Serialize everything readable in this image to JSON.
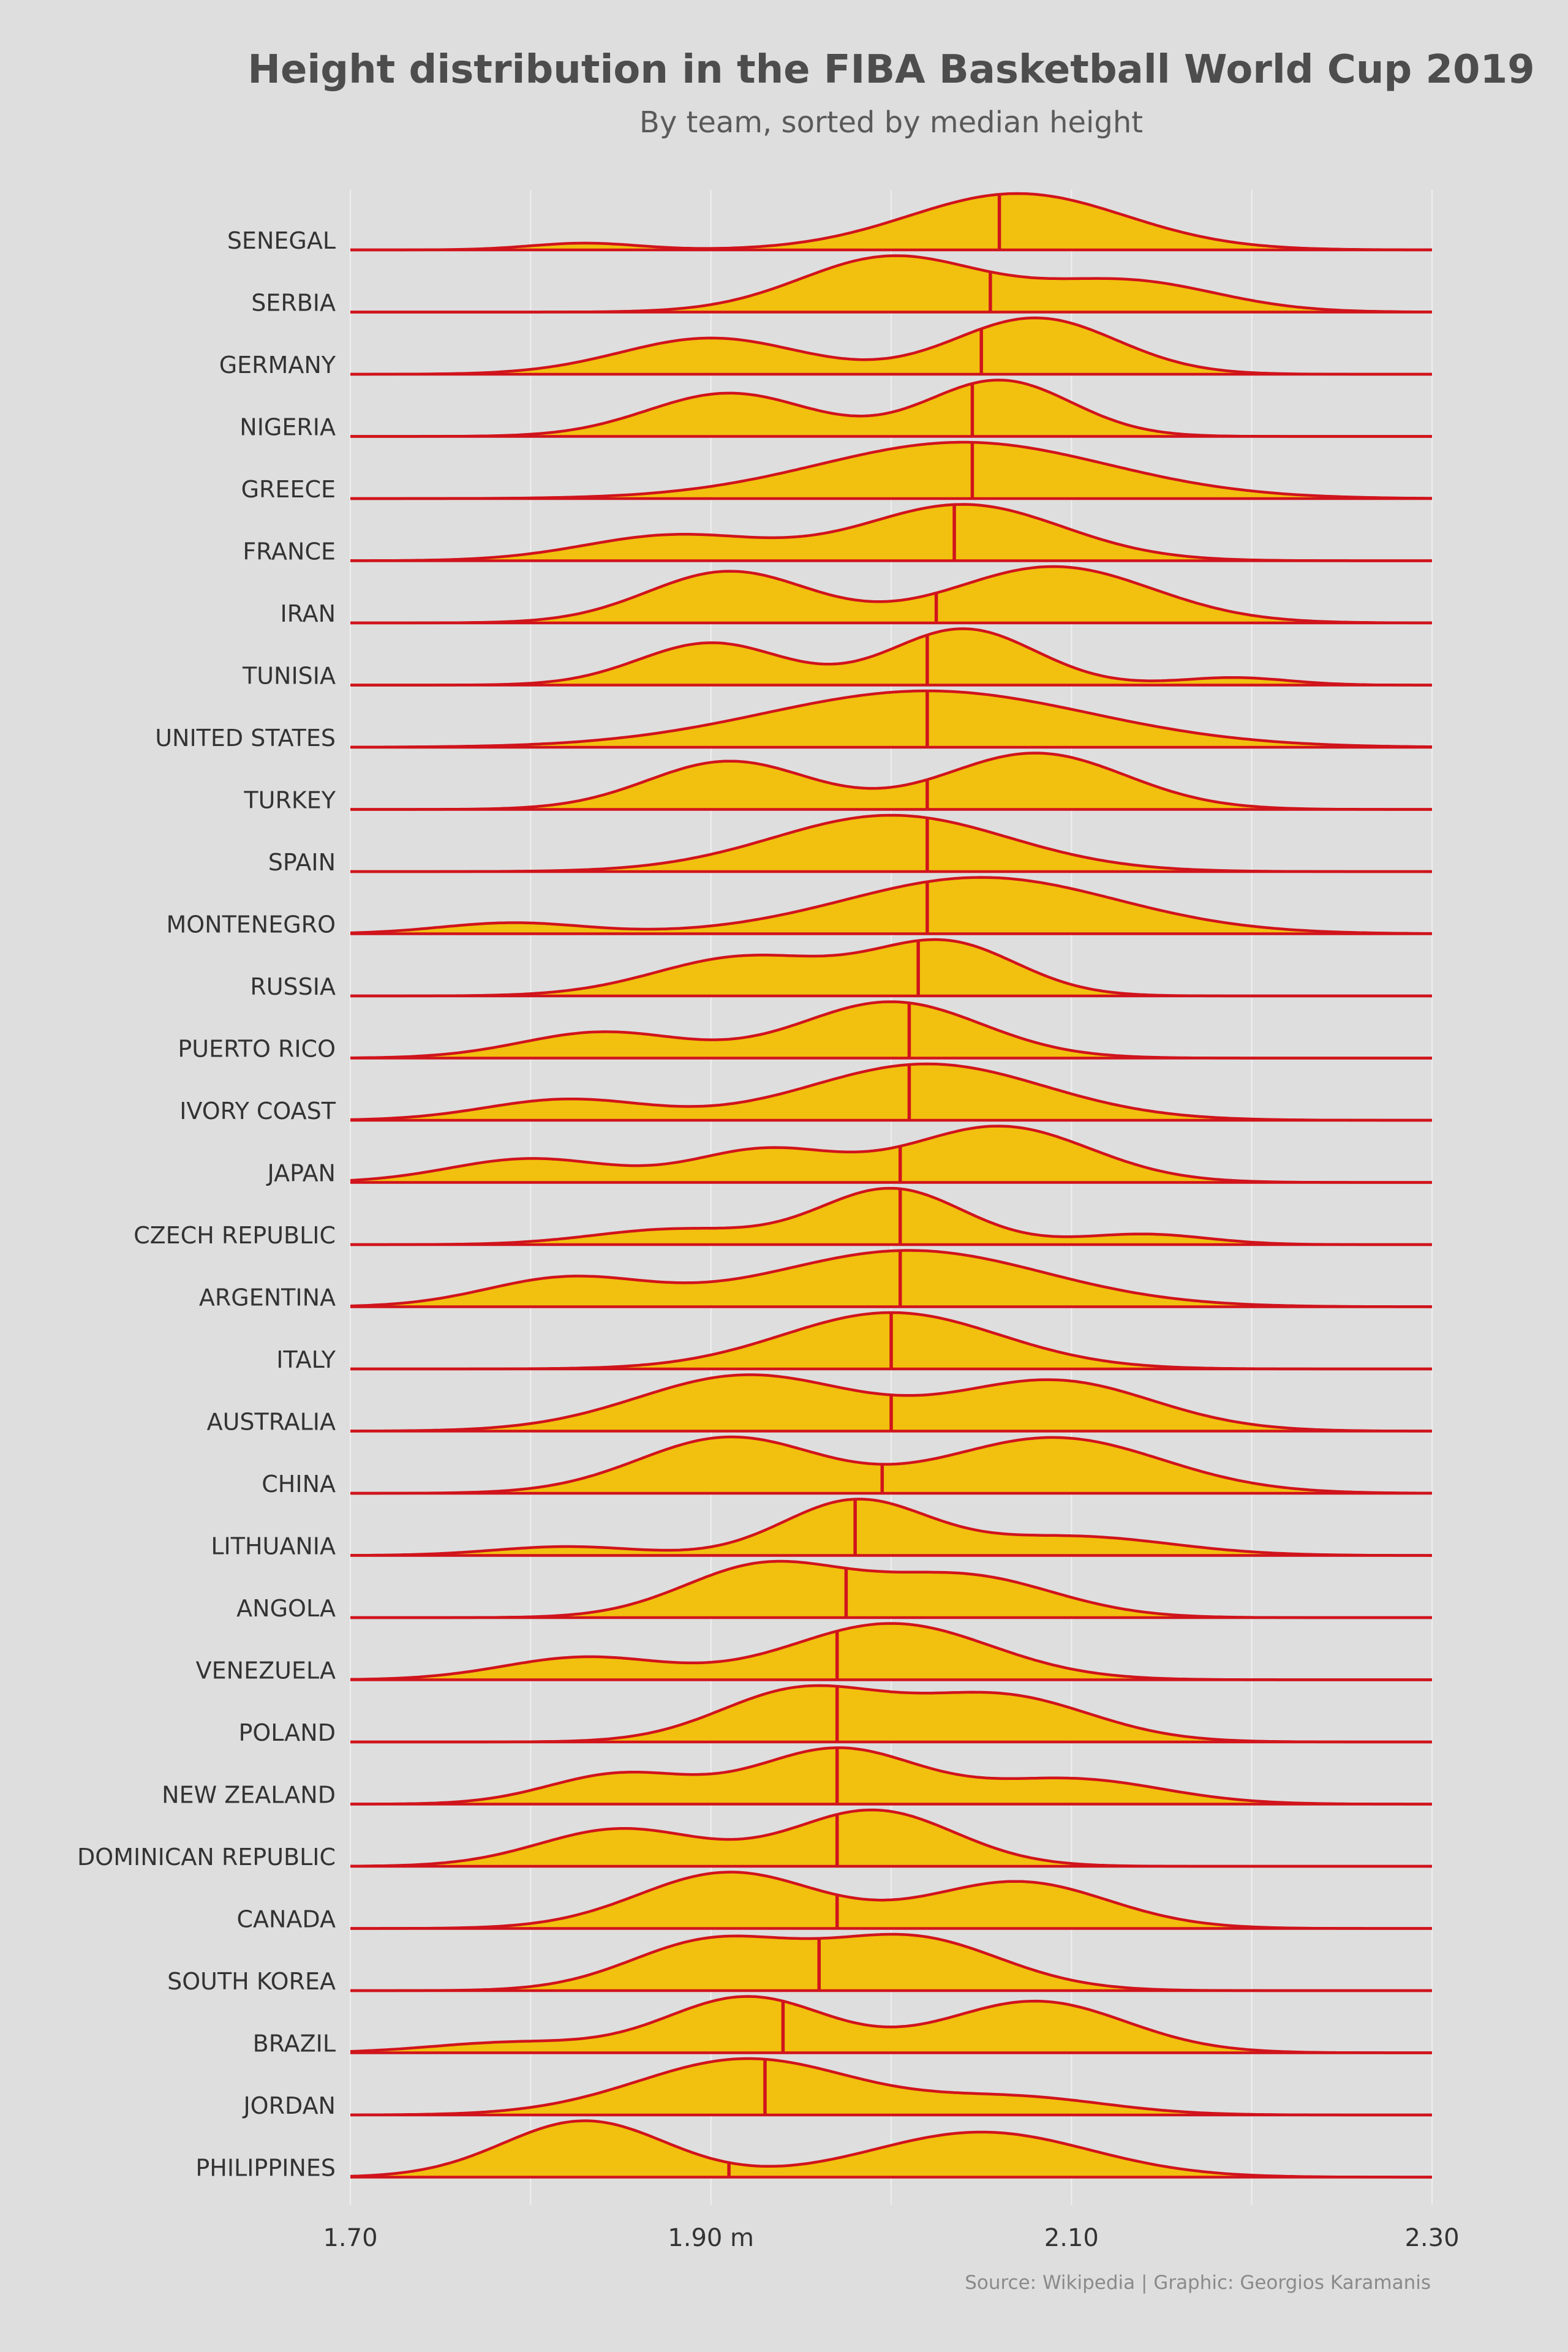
{
  "chart_data": {
    "type": "ridgeline",
    "title": "Height distribution in the FIBA Basketball World Cup 2019",
    "subtitle": "By team, sorted by median height",
    "caption": "Source: Wikipedia | Graphic: Georgios Karamanis",
    "xlim": [
      1.7,
      2.3
    ],
    "x_ticks": [
      {
        "value": 1.7,
        "label": "1.70"
      },
      {
        "value": 1.9,
        "label": "1.90 m"
      },
      {
        "value": 2.1,
        "label": "2.10"
      },
      {
        "value": 2.3,
        "label": "2.30"
      }
    ],
    "grid_minor_values": [
      1.8,
      2.0,
      2.2
    ],
    "fill_color": "#f2c00e",
    "line_color": "#d0141c",
    "teams": [
      {
        "name": "SENEGAL",
        "median": 2.06,
        "modes": [
          [
            1.83,
            0.03,
            0.12
          ],
          [
            2.07,
            0.06,
            1.0
          ]
        ]
      },
      {
        "name": "SERBIA",
        "median": 2.055,
        "modes": [
          [
            2.0,
            0.05,
            0.8
          ],
          [
            2.13,
            0.05,
            0.45
          ]
        ]
      },
      {
        "name": "GERMANY",
        "median": 2.05,
        "modes": [
          [
            1.9,
            0.05,
            0.45
          ],
          [
            2.08,
            0.045,
            0.7
          ]
        ]
      },
      {
        "name": "NIGERIA",
        "median": 2.045,
        "modes": [
          [
            1.91,
            0.045,
            0.5
          ],
          [
            2.06,
            0.04,
            0.65
          ]
        ]
      },
      {
        "name": "GREECE",
        "median": 2.045,
        "modes": [
          [
            2.04,
            0.08,
            0.7
          ]
        ]
      },
      {
        "name": "FRANCE",
        "median": 2.035,
        "modes": [
          [
            1.88,
            0.05,
            0.25
          ],
          [
            2.04,
            0.055,
            0.55
          ]
        ]
      },
      {
        "name": "IRAN",
        "median": 2.025,
        "modes": [
          [
            1.91,
            0.045,
            0.42
          ],
          [
            2.09,
            0.055,
            0.46
          ]
        ]
      },
      {
        "name": "TUNISIA",
        "median": 2.02,
        "modes": [
          [
            1.9,
            0.04,
            0.45
          ],
          [
            2.04,
            0.04,
            0.6
          ],
          [
            2.19,
            0.03,
            0.08
          ]
        ]
      },
      {
        "name": "UNITED STATES",
        "median": 2.02,
        "modes": [
          [
            2.02,
            0.09,
            0.6
          ]
        ]
      },
      {
        "name": "TURKEY",
        "median": 2.02,
        "modes": [
          [
            1.91,
            0.045,
            0.47
          ],
          [
            2.08,
            0.05,
            0.55
          ]
        ]
      },
      {
        "name": "SPAIN",
        "median": 2.02,
        "modes": [
          [
            2.0,
            0.065,
            0.7
          ]
        ]
      },
      {
        "name": "MONTENEGRO",
        "median": 2.02,
        "modes": [
          [
            1.79,
            0.04,
            0.12
          ],
          [
            2.05,
            0.075,
            0.62
          ]
        ]
      },
      {
        "name": "RUSSIA",
        "median": 2.015,
        "modes": [
          [
            1.92,
            0.05,
            0.45
          ],
          [
            2.03,
            0.04,
            0.6
          ]
        ]
      },
      {
        "name": "PUERTO RICO",
        "median": 2.01,
        "modes": [
          [
            1.84,
            0.045,
            0.3
          ],
          [
            2.0,
            0.05,
            0.65
          ]
        ]
      },
      {
        "name": "IVORY COAST",
        "median": 2.01,
        "modes": [
          [
            1.82,
            0.045,
            0.24
          ],
          [
            2.02,
            0.065,
            0.65
          ]
        ]
      },
      {
        "name": "JAPAN",
        "median": 2.005,
        "modes": [
          [
            1.8,
            0.045,
            0.22
          ],
          [
            1.93,
            0.04,
            0.3
          ],
          [
            2.06,
            0.05,
            0.52
          ]
        ]
      },
      {
        "name": "CZECH REPUBLIC",
        "median": 2.005,
        "modes": [
          [
            1.88,
            0.045,
            0.22
          ],
          [
            2.0,
            0.04,
            0.8
          ],
          [
            2.14,
            0.035,
            0.15
          ]
        ]
      },
      {
        "name": "ARGENTINA",
        "median": 2.005,
        "modes": [
          [
            1.82,
            0.045,
            0.25
          ],
          [
            2.01,
            0.075,
            0.5
          ]
        ]
      },
      {
        "name": "ITALY",
        "median": 2.0,
        "modes": [
          [
            2.0,
            0.06,
            0.9
          ]
        ]
      },
      {
        "name": "AUSTRALIA",
        "median": 2.0,
        "modes": [
          [
            1.92,
            0.06,
            0.5
          ],
          [
            2.09,
            0.055,
            0.45
          ]
        ]
      },
      {
        "name": "CHINA",
        "median": 1.995,
        "modes": [
          [
            1.91,
            0.05,
            0.55
          ],
          [
            2.09,
            0.06,
            0.55
          ]
        ]
      },
      {
        "name": "LITHUANIA",
        "median": 1.98,
        "modes": [
          [
            1.82,
            0.04,
            0.13
          ],
          [
            1.98,
            0.04,
            0.8
          ],
          [
            2.1,
            0.055,
            0.28
          ]
        ]
      },
      {
        "name": "ANGOLA",
        "median": 1.975,
        "modes": [
          [
            1.93,
            0.045,
            0.5
          ],
          [
            2.04,
            0.05,
            0.4
          ]
        ]
      },
      {
        "name": "VENEZUELA",
        "median": 1.97,
        "modes": [
          [
            1.83,
            0.045,
            0.3
          ],
          [
            2.0,
            0.055,
            0.75
          ]
        ]
      },
      {
        "name": "POLAND",
        "median": 1.97,
        "modes": [
          [
            1.95,
            0.045,
            0.5
          ],
          [
            2.06,
            0.05,
            0.45
          ]
        ]
      },
      {
        "name": "NEW ZEALAND",
        "median": 1.97,
        "modes": [
          [
            1.85,
            0.04,
            0.3
          ],
          [
            1.97,
            0.045,
            0.55
          ],
          [
            2.1,
            0.05,
            0.25
          ]
        ]
      },
      {
        "name": "DOMINICAN REPUBLIC",
        "median": 1.97,
        "modes": [
          [
            1.85,
            0.045,
            0.4
          ],
          [
            1.99,
            0.045,
            0.6
          ]
        ]
      },
      {
        "name": "CANADA",
        "median": 1.97,
        "modes": [
          [
            1.91,
            0.05,
            0.6
          ],
          [
            2.07,
            0.05,
            0.5
          ]
        ]
      },
      {
        "name": "SOUTH KOREA",
        "median": 1.96,
        "modes": [
          [
            1.9,
            0.045,
            0.5
          ],
          [
            2.01,
            0.05,
            0.55
          ]
        ]
      },
      {
        "name": "BRAZIL",
        "median": 1.94,
        "modes": [
          [
            1.79,
            0.045,
            0.12
          ],
          [
            1.92,
            0.045,
            0.65
          ],
          [
            2.08,
            0.05,
            0.6
          ]
        ]
      },
      {
        "name": "JORDAN",
        "median": 1.93,
        "modes": [
          [
            1.92,
            0.06,
            0.72
          ],
          [
            2.07,
            0.05,
            0.22
          ]
        ]
      },
      {
        "name": "PHILIPPINES",
        "median": 1.91,
        "modes": [
          [
            1.83,
            0.045,
            0.5
          ],
          [
            2.05,
            0.06,
            0.4
          ]
        ]
      }
    ]
  }
}
